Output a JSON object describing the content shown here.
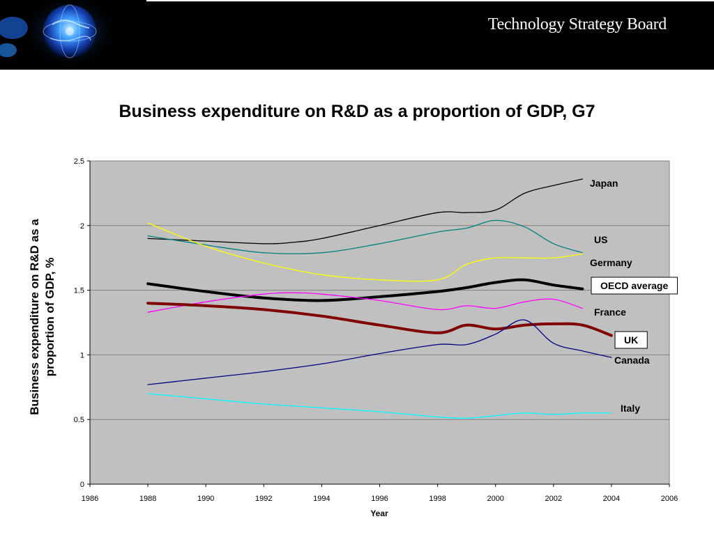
{
  "header": {
    "org_name": "Technology Strategy Board",
    "logo_icon": "globe-logo-icon",
    "background_color": "#000000"
  },
  "slide": {
    "title": "Business expenditure on R&D as a proportion of GDP, G7"
  },
  "chart_data": {
    "type": "line",
    "title": "Business expenditure on R&D as a proportion of GDP, G7",
    "xlabel": "Year",
    "ylabel": "Business expenditure on R&D as a proportion of GDP, %",
    "xlim": [
      1986,
      2006
    ],
    "ylim": [
      0,
      2.5
    ],
    "xticks": [
      1986,
      1988,
      1990,
      1992,
      1994,
      1996,
      1998,
      2000,
      2002,
      2004,
      2006
    ],
    "yticks": [
      0,
      0.5,
      1,
      1.5,
      2,
      2.5
    ],
    "x_tick_labels": [
      "1986",
      "1988",
      "1990",
      "1992",
      "1994",
      "1996",
      "1998",
      "2000",
      "2002",
      "2004",
      "2006"
    ],
    "y_tick_labels": [
      "0",
      "0.5",
      "1",
      "1.5",
      "2",
      "2.5"
    ],
    "grid": "horizontal",
    "plot_background": "#c0c0c0",
    "legend": "inline labels at right end of each line",
    "series": [
      {
        "name": "Japan",
        "color": "#000000",
        "boxed": false,
        "x": [
          1988,
          1990,
          1992,
          1993,
          1994,
          1996,
          1998,
          1999,
          2000,
          2001,
          2002,
          2003
        ],
        "values": [
          1.9,
          1.88,
          1.86,
          1.87,
          1.9,
          2.0,
          2.1,
          2.1,
          2.12,
          2.25,
          2.31,
          2.36
        ]
      },
      {
        "name": "US",
        "color": "#008080",
        "boxed": false,
        "x": [
          1988,
          1990,
          1992,
          1994,
          1996,
          1998,
          1999,
          2000,
          2001,
          2002,
          2003
        ],
        "values": [
          1.92,
          1.85,
          1.79,
          1.79,
          1.86,
          1.95,
          1.98,
          2.04,
          1.99,
          1.86,
          1.79
        ]
      },
      {
        "name": "Germany",
        "color": "#ffff00",
        "boxed": false,
        "x": [
          1988,
          1990,
          1992,
          1994,
          1996,
          1998,
          1999,
          2000,
          2001,
          2002,
          2003
        ],
        "values": [
          2.02,
          1.84,
          1.71,
          1.62,
          1.58,
          1.58,
          1.7,
          1.75,
          1.75,
          1.75,
          1.78
        ]
      },
      {
        "name": "OECD average",
        "color": "#000000",
        "boxed": true,
        "x": [
          1988,
          1990,
          1992,
          1994,
          1996,
          1998,
          1999,
          2000,
          2001,
          2002,
          2003
        ],
        "values": [
          1.55,
          1.49,
          1.44,
          1.42,
          1.45,
          1.49,
          1.52,
          1.56,
          1.58,
          1.54,
          1.51
        ]
      },
      {
        "name": "France",
        "color": "#ff00ff",
        "boxed": false,
        "x": [
          1988,
          1990,
          1992,
          1993,
          1994,
          1996,
          1998,
          1999,
          2000,
          2001,
          2002,
          2003
        ],
        "values": [
          1.33,
          1.41,
          1.47,
          1.48,
          1.47,
          1.42,
          1.35,
          1.38,
          1.36,
          1.41,
          1.43,
          1.36
        ]
      },
      {
        "name": "UK",
        "color": "#800000",
        "boxed": true,
        "x": [
          1988,
          1990,
          1992,
          1994,
          1996,
          1998,
          1999,
          2000,
          2001,
          2002,
          2003,
          2004
        ],
        "values": [
          1.4,
          1.38,
          1.35,
          1.3,
          1.23,
          1.17,
          1.23,
          1.2,
          1.23,
          1.24,
          1.23,
          1.15
        ]
      },
      {
        "name": "Canada",
        "color": "#000080",
        "boxed": false,
        "x": [
          1988,
          1990,
          1992,
          1994,
          1996,
          1998,
          1999,
          2000,
          2001,
          2002,
          2003,
          2004
        ],
        "values": [
          0.77,
          0.82,
          0.87,
          0.93,
          1.01,
          1.08,
          1.08,
          1.16,
          1.27,
          1.09,
          1.03,
          0.98
        ]
      },
      {
        "name": "Italy",
        "color": "#00ffff",
        "boxed": false,
        "x": [
          1988,
          1990,
          1992,
          1994,
          1996,
          1998,
          1999,
          2000,
          2001,
          2002,
          2003,
          2004
        ],
        "values": [
          0.7,
          0.66,
          0.62,
          0.59,
          0.56,
          0.52,
          0.51,
          0.53,
          0.55,
          0.54,
          0.55,
          0.55
        ]
      }
    ]
  }
}
